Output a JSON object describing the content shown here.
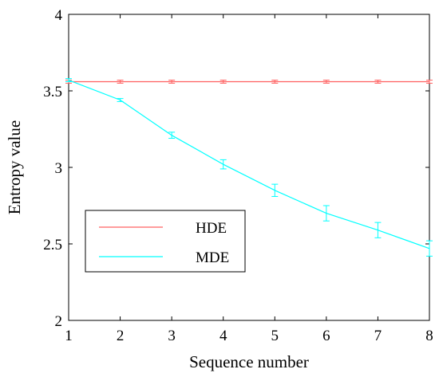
{
  "chart_data": {
    "type": "line",
    "title": "",
    "xlabel": "Sequence number",
    "ylabel": "Entropy value",
    "x": [
      1,
      2,
      3,
      4,
      5,
      6,
      7,
      8
    ],
    "xlim": [
      1,
      8
    ],
    "ylim": [
      2,
      4
    ],
    "xticks": [
      1,
      2,
      3,
      4,
      5,
      6,
      7,
      8
    ],
    "yticks": [
      2,
      2.5,
      3,
      3.5,
      4
    ],
    "grid": false,
    "legend_position": "bottom-left",
    "series": [
      {
        "name": "HDE",
        "color": "#ff6060",
        "values": [
          3.56,
          3.56,
          3.56,
          3.56,
          3.56,
          3.56,
          3.56,
          3.56
        ],
        "errors": [
          0.01,
          0.01,
          0.01,
          0.01,
          0.01,
          0.01,
          0.01,
          0.01
        ]
      },
      {
        "name": "MDE",
        "color": "#00ffff",
        "values": [
          3.57,
          3.44,
          3.21,
          3.02,
          2.85,
          2.7,
          2.59,
          2.47
        ],
        "errors": [
          0.01,
          0.01,
          0.02,
          0.03,
          0.04,
          0.05,
          0.05,
          0.05
        ]
      }
    ]
  }
}
